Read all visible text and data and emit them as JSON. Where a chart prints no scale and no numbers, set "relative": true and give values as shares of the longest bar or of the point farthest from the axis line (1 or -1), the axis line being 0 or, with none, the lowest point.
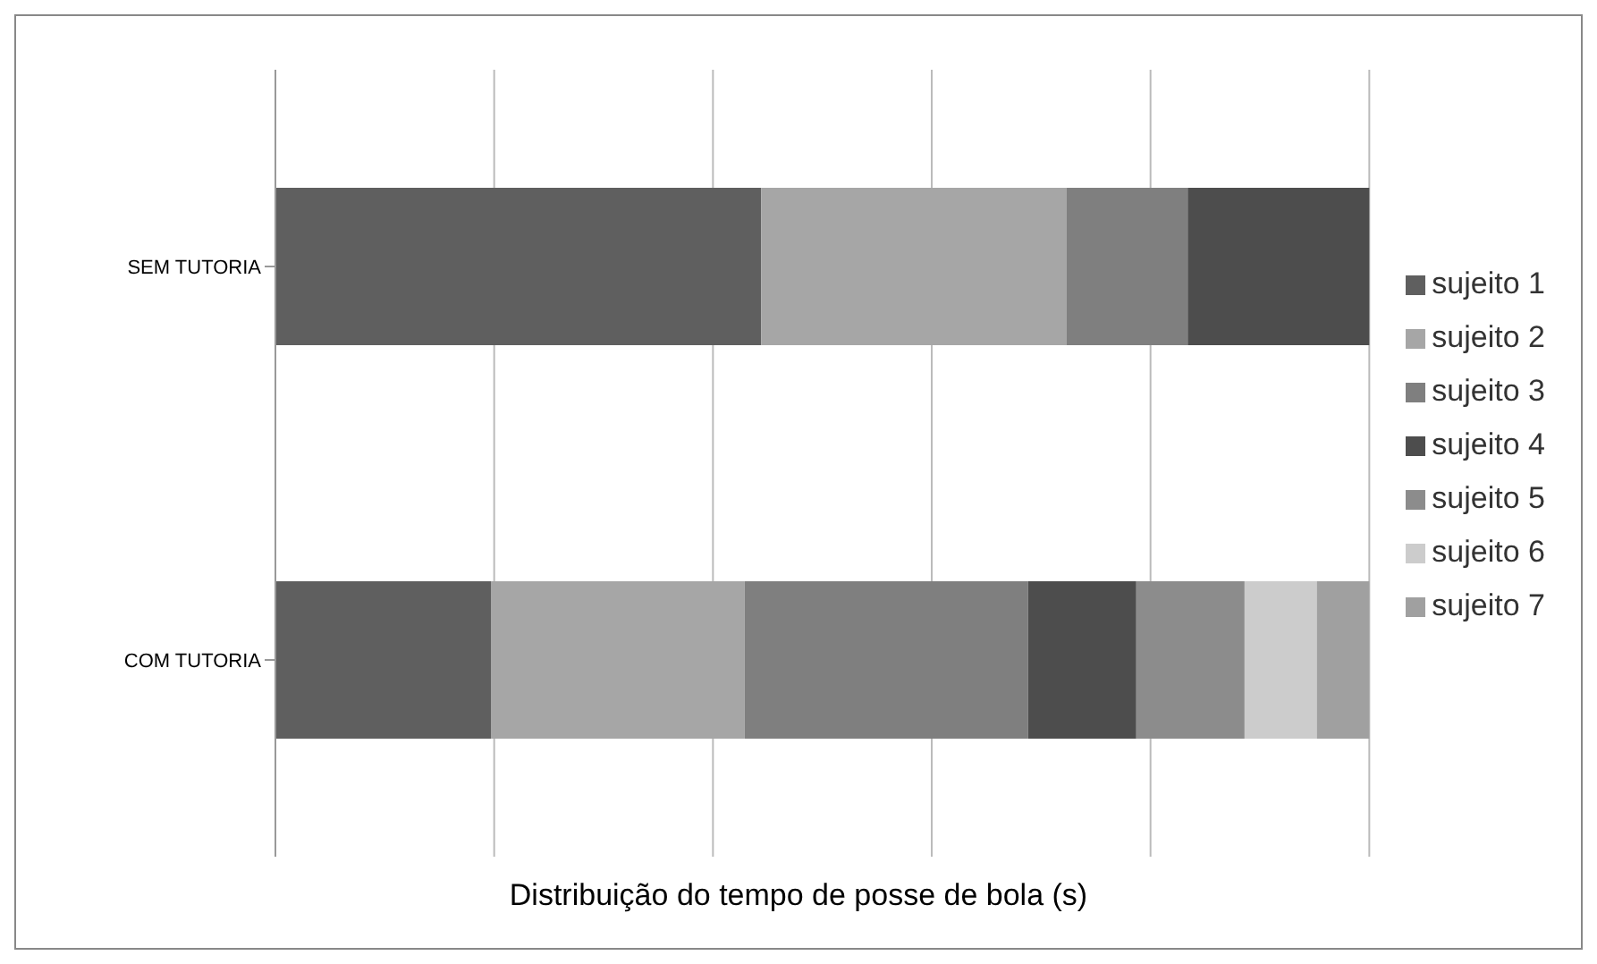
{
  "chart_data": {
    "type": "bar",
    "orientation": "horizontal",
    "stacked": true,
    "relative": true,
    "xlabel": "Distribuição do tempo de posse de bola (s)",
    "categories": [
      "SEM TUTORIA",
      "COM TUTORIA"
    ],
    "grid": "x",
    "legend": "right",
    "series": [
      {
        "name": "sujeito 1",
        "color": "#5f5f5f",
        "values": [
          0.444,
          0.197
        ]
      },
      {
        "name": "sujeito 2",
        "color": "#a6a6a6",
        "values": [
          0.279,
          0.232
        ]
      },
      {
        "name": "sujeito 3",
        "color": "#7f7f7f",
        "values": [
          0.111,
          0.259
        ]
      },
      {
        "name": "sujeito 4",
        "color": "#4d4d4d",
        "values": [
          0.166,
          0.099
        ]
      },
      {
        "name": "sujeito 5",
        "color": "#8c8c8c",
        "values": [
          null,
          0.099
        ]
      },
      {
        "name": "sujeito 6",
        "color": "#cccccc",
        "values": [
          null,
          0.066
        ]
      },
      {
        "name": "sujeito 7",
        "color": "#a0a0a0",
        "values": [
          null,
          0.048
        ]
      }
    ]
  }
}
